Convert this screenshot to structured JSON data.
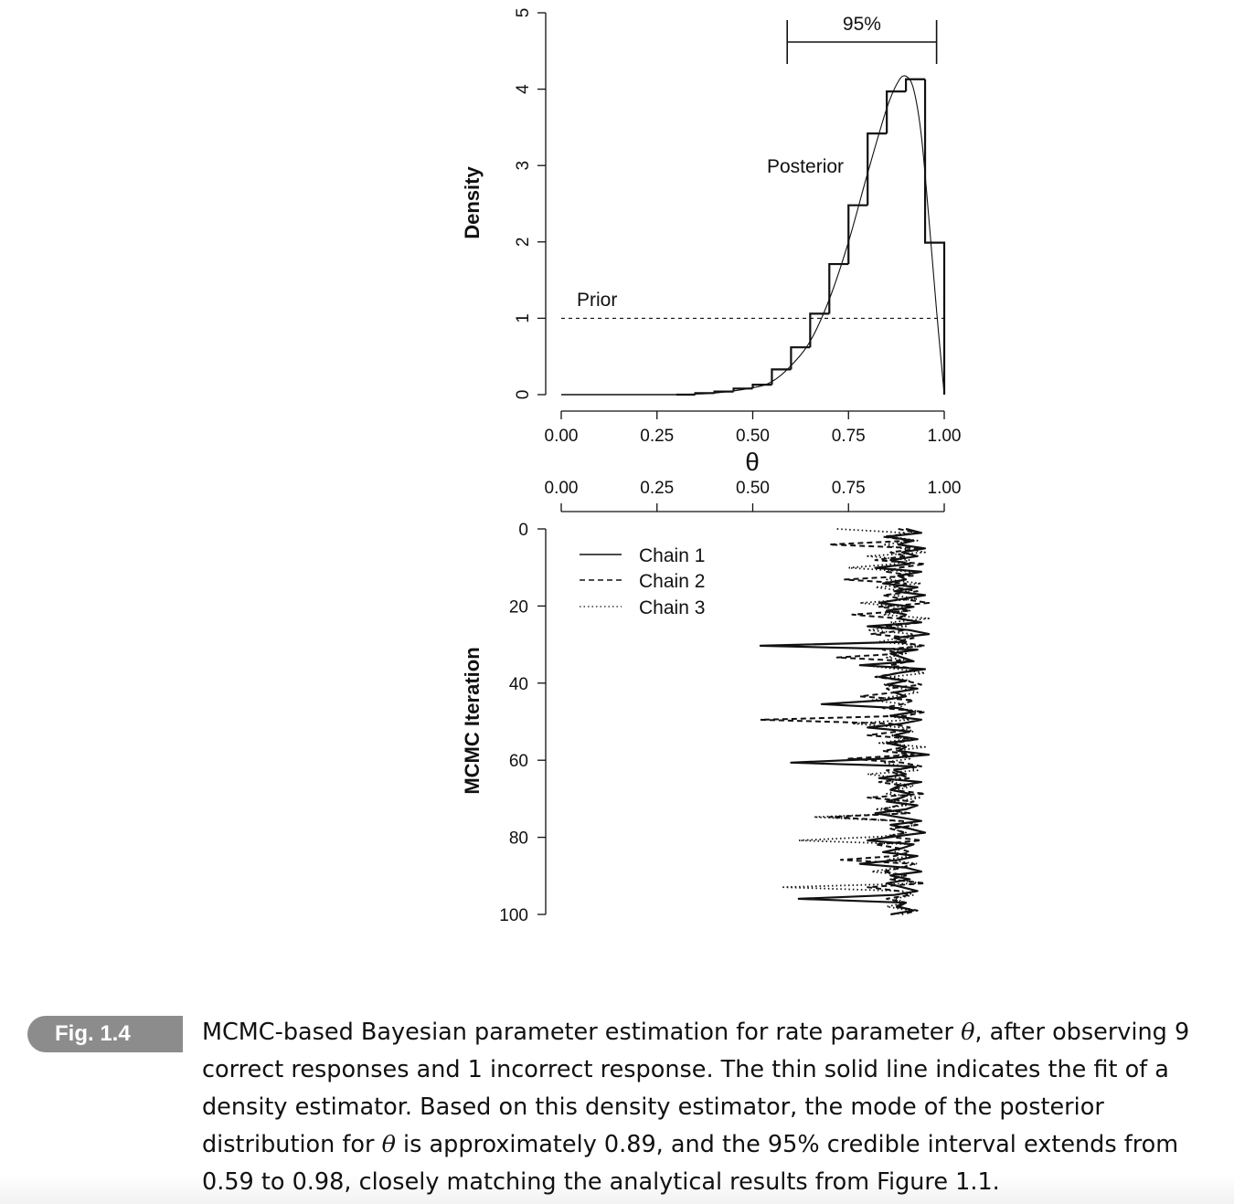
{
  "chart_data": [
    {
      "type": "bar",
      "panel": "posterior-density",
      "ylabel": "Density",
      "xlabel": "θ",
      "ylim": [
        0,
        5
      ],
      "xlim": [
        0,
        1
      ],
      "yticks": [
        "0",
        "1",
        "2",
        "3",
        "4",
        "5"
      ],
      "xticks": [
        "0.00",
        "0.25",
        "0.50",
        "0.75",
        "1.00"
      ],
      "histogram": {
        "bin_edges": [
          0.3,
          0.35,
          0.4,
          0.45,
          0.5,
          0.55,
          0.6,
          0.65,
          0.7,
          0.75,
          0.8,
          0.85,
          0.9,
          0.95,
          1.0
        ],
        "values": [
          0.0,
          0.02,
          0.04,
          0.08,
          0.13,
          0.33,
          0.62,
          1.06,
          1.71,
          2.48,
          3.42,
          3.97,
          4.13,
          1.99
        ]
      },
      "density_curve": {
        "x": [
          0.3,
          0.4,
          0.5,
          0.55,
          0.6,
          0.65,
          0.7,
          0.75,
          0.8,
          0.85,
          0.88,
          0.9,
          0.92,
          0.94,
          0.96,
          0.98,
          1.0
        ],
        "y": [
          0.0,
          0.02,
          0.09,
          0.17,
          0.38,
          0.7,
          1.25,
          2.0,
          2.9,
          3.75,
          4.1,
          4.17,
          4.0,
          3.4,
          2.3,
          1.1,
          0.0
        ]
      },
      "prior": {
        "label": "Prior",
        "value": 1
      },
      "posterior_label": "Posterior",
      "interval": {
        "label": "95%",
        "lower": 0.59,
        "upper": 0.98
      }
    },
    {
      "type": "line",
      "panel": "mcmc-chains",
      "ylabel": "MCMC Iteration",
      "ylim": [
        0,
        100
      ],
      "yticks": [
        "0",
        "20",
        "40",
        "60",
        "80",
        "100"
      ],
      "xticks": [
        "0.00",
        "0.25",
        "0.50",
        "0.75",
        "1.00"
      ],
      "xlim": [
        0,
        1
      ],
      "series": [
        {
          "name": "Chain 1",
          "style": "solid",
          "values": [
            0.9,
            0.94,
            0.85,
            0.92,
            0.88,
            0.95,
            0.89,
            0.93,
            0.86,
            0.91,
            0.82,
            0.94,
            0.88,
            0.9,
            0.84,
            0.93,
            0.87,
            0.95,
            0.89,
            0.83,
            0.92,
            0.85,
            0.9,
            0.88,
            0.94,
            0.8,
            0.91,
            0.96,
            0.87,
            0.9,
            0.52,
            0.93,
            0.86,
            0.89,
            0.92,
            0.78,
            0.95,
            0.88,
            0.83,
            0.9,
            0.85,
            0.93,
            0.87,
            0.9,
            0.84,
            0.68,
            0.88,
            0.92,
            0.86,
            0.94,
            0.89,
            0.8,
            0.91,
            0.87,
            0.93,
            0.85,
            0.9,
            0.88,
            0.96,
            0.84,
            0.6,
            0.92,
            0.87,
            0.9,
            0.83,
            0.94,
            0.88,
            0.86,
            0.91,
            0.89,
            0.85,
            0.93,
            0.9,
            0.82,
            0.88,
            0.94,
            0.86,
            0.91,
            0.95,
            0.87,
            0.8,
            0.92,
            0.89,
            0.84,
            0.93,
            0.88,
            0.78,
            0.9,
            0.94,
            0.86,
            0.91,
            0.85,
            0.89,
            0.93,
            0.87,
            0.62,
            0.9,
            0.88,
            0.92,
            0.86
          ]
        },
        {
          "name": "Chain 2",
          "style": "dashed",
          "values": [
            0.88,
            0.93,
            0.84,
            0.91,
            0.7,
            0.94,
            0.86,
            0.9,
            0.82,
            0.95,
            0.88,
            0.85,
            0.92,
            0.74,
            0.9,
            0.87,
            0.93,
            0.84,
            0.89,
            0.96,
            0.83,
            0.91,
            0.76,
            0.88,
            0.94,
            0.85,
            0.9,
            0.81,
            0.92,
            0.87,
            0.95,
            0.84,
            0.89,
            0.72,
            0.91,
            0.86,
            0.93,
            0.88,
            0.82,
            0.9,
            0.94,
            0.85,
            0.87,
            0.78,
            0.92,
            0.89,
            0.84,
            0.95,
            0.9,
            0.52,
            0.86,
            0.91,
            0.88,
            0.8,
            0.93,
            0.87,
            0.9,
            0.84,
            0.92,
            0.75,
            0.89,
            0.94,
            0.85,
            0.88,
            0.91,
            0.83,
            0.9,
            0.86,
            0.95,
            0.8,
            0.92,
            0.88,
            0.84,
            0.91,
            0.7,
            0.89,
            0.93,
            0.86,
            0.9,
            0.85,
            0.94,
            0.82,
            0.88,
            0.91,
            0.87,
            0.73,
            0.92,
            0.89,
            0.84,
            0.9,
            0.86,
            0.95,
            0.8,
            0.88,
            0.91,
            0.85,
            0.9,
            0.87,
            0.93,
            0.89
          ]
        },
        {
          "name": "Chain 3",
          "style": "dotted",
          "values": [
            0.72,
            0.9,
            0.86,
            0.93,
            0.84,
            0.89,
            0.95,
            0.8,
            0.91,
            0.87,
            0.75,
            0.92,
            0.88,
            0.85,
            0.94,
            0.82,
            0.9,
            0.87,
            0.93,
            0.78,
            0.89,
            0.91,
            0.84,
            0.96,
            0.86,
            0.9,
            0.8,
            0.92,
            0.88,
            0.83,
            0.94,
            0.87,
            0.9,
            0.85,
            0.92,
            0.79,
            0.88,
            0.95,
            0.86,
            0.91,
            0.84,
            0.89,
            0.93,
            0.87,
            0.81,
            0.9,
            0.88,
            0.94,
            0.85,
            0.91,
            0.76,
            0.89,
            0.92,
            0.86,
            0.9,
            0.83,
            0.95,
            0.87,
            0.88,
            0.91,
            0.84,
            0.9,
            0.93,
            0.8,
            0.89,
            0.86,
            0.92,
            0.88,
            0.85,
            0.94,
            0.87,
            0.9,
            0.82,
            0.91,
            0.66,
            0.88,
            0.93,
            0.86,
            0.9,
            0.84,
            0.62,
            0.92,
            0.89,
            0.87,
            0.91,
            0.85,
            0.93,
            0.88,
            0.81,
            0.9,
            0.86,
            0.94,
            0.58,
            0.89,
            0.92,
            0.87,
            0.9,
            0.85,
            0.91,
            0.88
          ]
        }
      ]
    }
  ],
  "caption": {
    "badge": "Fig. 1.4",
    "part1": "MCMC-based Bayesian parameter estimation for rate parameter ",
    "theta1": "θ",
    "part2": ", after observing 9 correct responses and 1 incorrect response. The thin solid line indicates the fit of a density estimator. Based on this density estimator, the mode of the posterior distribution for ",
    "theta2": "θ",
    "part3": " is approximately 0.89, and the 95% credible interval extends from 0.59 to 0.98, closely matching the analytical results from Figure 1.1."
  }
}
